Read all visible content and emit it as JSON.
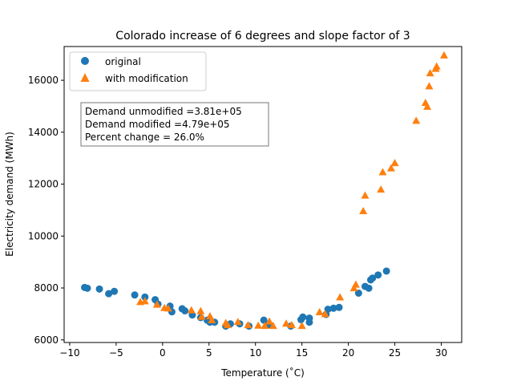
{
  "chart_data": {
    "type": "scatter",
    "title": "Colorado increase of 6 degrees and slope factor of 3",
    "xlabel": "Temperature (˚C)",
    "ylabel": "Electricity demand (MWh)",
    "xlim": [
      -10.6,
      32.2
    ],
    "ylim": [
      5900,
      17300
    ],
    "xticks": [
      -10,
      -5,
      0,
      5,
      10,
      15,
      20,
      25,
      30
    ],
    "yticks": [
      6000,
      8000,
      10000,
      12000,
      14000,
      16000
    ],
    "legend_position": "top-left",
    "annotation": [
      "Demand unmodified =3.81e+05",
      "Demand modified =4.79e+05",
      "Percent change = 26.0%"
    ],
    "series": [
      {
        "name": "original",
        "marker": "circle",
        "color": "#1f77b4",
        "points": [
          [
            -8.4,
            8020
          ],
          [
            -8.1,
            7990
          ],
          [
            -6.8,
            7960
          ],
          [
            -5.8,
            7780
          ],
          [
            -5.2,
            7870
          ],
          [
            -3.0,
            7730
          ],
          [
            -1.9,
            7650
          ],
          [
            -0.8,
            7550
          ],
          [
            -0.5,
            7380
          ],
          [
            0.8,
            7300
          ],
          [
            1.0,
            7080
          ],
          [
            2.1,
            7200
          ],
          [
            2.4,
            7120
          ],
          [
            3.2,
            6960
          ],
          [
            4.1,
            6860
          ],
          [
            4.8,
            6760
          ],
          [
            5.1,
            6680
          ],
          [
            5.6,
            6680
          ],
          [
            6.8,
            6530
          ],
          [
            7.3,
            6620
          ],
          [
            8.3,
            6620
          ],
          [
            9.3,
            6530
          ],
          [
            10.9,
            6760
          ],
          [
            11.4,
            6580
          ],
          [
            13.8,
            6530
          ],
          [
            14.9,
            6780
          ],
          [
            15.1,
            6880
          ],
          [
            15.8,
            6840
          ],
          [
            15.8,
            6680
          ],
          [
            17.6,
            6980
          ],
          [
            17.8,
            7180
          ],
          [
            18.4,
            7220
          ],
          [
            19.0,
            7250
          ],
          [
            21.1,
            7800
          ],
          [
            21.8,
            8060
          ],
          [
            22.2,
            7990
          ],
          [
            22.4,
            8310
          ],
          [
            22.6,
            8380
          ],
          [
            23.2,
            8500
          ],
          [
            24.1,
            8650
          ]
        ]
      },
      {
        "name": "with modification",
        "marker": "triangle",
        "color": "#ff7f0e",
        "points": [
          [
            -2.4,
            7450
          ],
          [
            -1.9,
            7480
          ],
          [
            -0.6,
            7350
          ],
          [
            0.2,
            7220
          ],
          [
            0.6,
            7200
          ],
          [
            3.1,
            7130
          ],
          [
            4.1,
            7100
          ],
          [
            4.2,
            6880
          ],
          [
            5.1,
            6900
          ],
          [
            5.3,
            6750
          ],
          [
            6.8,
            6640
          ],
          [
            7.0,
            6560
          ],
          [
            8.1,
            6680
          ],
          [
            9.2,
            6560
          ],
          [
            10.3,
            6540
          ],
          [
            11.0,
            6530
          ],
          [
            11.5,
            6700
          ],
          [
            11.9,
            6530
          ],
          [
            13.3,
            6620
          ],
          [
            13.9,
            6560
          ],
          [
            15.0,
            6530
          ],
          [
            16.9,
            7060
          ],
          [
            17.5,
            6980
          ],
          [
            19.1,
            7630
          ],
          [
            20.6,
            7980
          ],
          [
            20.8,
            8120
          ],
          [
            21.6,
            10950
          ],
          [
            21.8,
            11550
          ],
          [
            23.5,
            11780
          ],
          [
            23.7,
            12450
          ],
          [
            24.6,
            12600
          ],
          [
            25.0,
            12800
          ],
          [
            27.3,
            14430
          ],
          [
            28.3,
            15120
          ],
          [
            28.5,
            14970
          ],
          [
            28.7,
            15760
          ],
          [
            28.8,
            16260
          ],
          [
            29.4,
            16430
          ],
          [
            29.5,
            16520
          ],
          [
            30.3,
            16950
          ]
        ]
      }
    ]
  }
}
